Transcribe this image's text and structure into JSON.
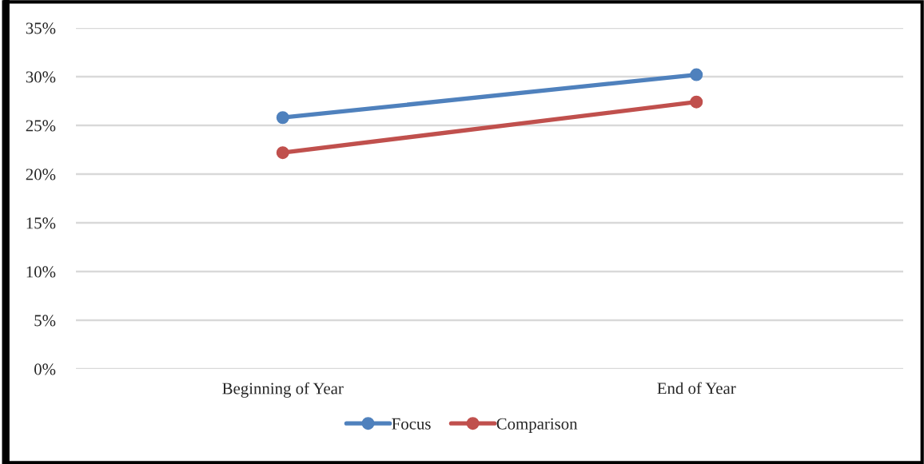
{
  "chart_data": {
    "type": "line",
    "categories": [
      "Beginning of Year",
      "End of Year"
    ],
    "series": [
      {
        "name": "Focus",
        "color": "#4f81bd",
        "values": [
          25.8,
          30.2
        ]
      },
      {
        "name": "Comparison",
        "color": "#c0504d",
        "values": [
          22.2,
          27.4
        ]
      }
    ],
    "ylim": [
      0,
      35
    ],
    "yticks": [
      {
        "value": 0,
        "label": "0%"
      },
      {
        "value": 5,
        "label": "5%"
      },
      {
        "value": 10,
        "label": "10%"
      },
      {
        "value": 15,
        "label": "15%"
      },
      {
        "value": 20,
        "label": "20%"
      },
      {
        "value": 25,
        "label": "25%"
      },
      {
        "value": 30,
        "label": "30%"
      },
      {
        "value": 35,
        "label": "35%"
      }
    ],
    "grid": "y",
    "legend": "bottom",
    "marker": "circle",
    "line_style": "solid"
  }
}
